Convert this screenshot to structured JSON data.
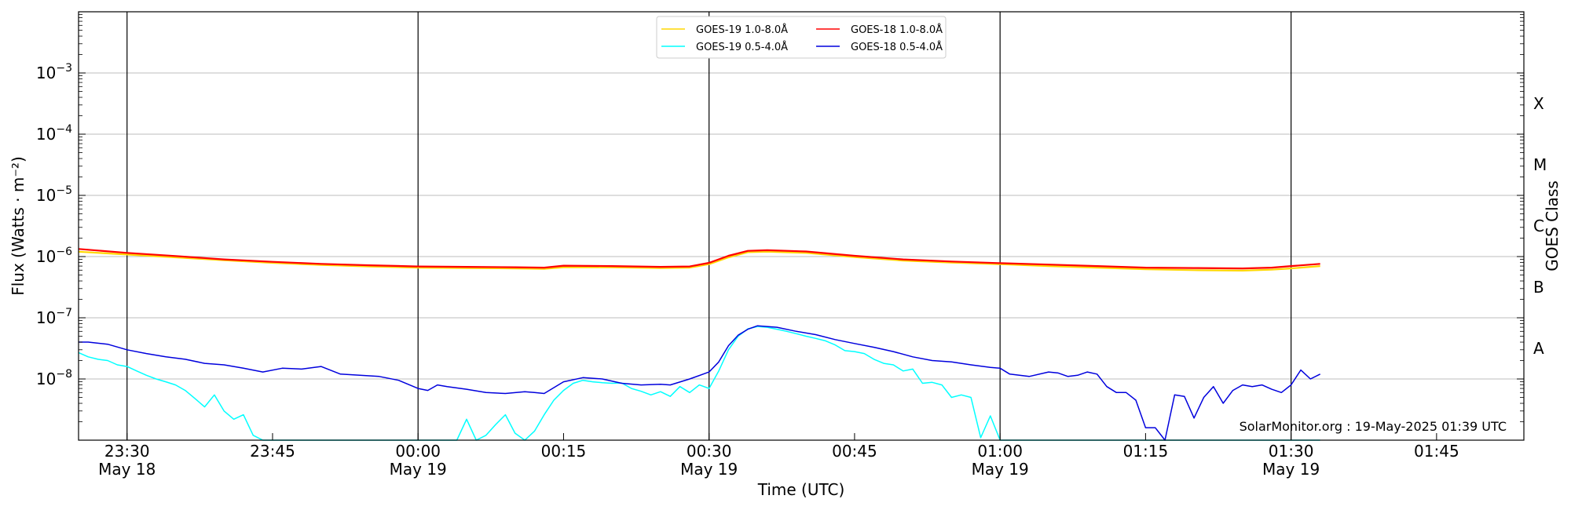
{
  "chart_data": {
    "type": "line",
    "xlabel": "Time (UTC)",
    "ylabel": "Flux (Watts · m⁻²)",
    "ylabel_right": "GOES Class",
    "y_scale": "log",
    "y_range": [
      1e-09,
      0.01
    ],
    "x_range": [
      "2025-05-18 23:25",
      "2025-05-19 01:54"
    ],
    "grid_y": true,
    "legend_position": "top-center",
    "credit": "SolarMonitor.org : 19-May-2025 01:39 UTC",
    "x_ticks": [
      {
        "time": "2025-05-18 23:30",
        "label1": "23:30",
        "label2": "May 18"
      },
      {
        "time": "2025-05-18 23:45",
        "label1": "23:45",
        "label2": ""
      },
      {
        "time": "2025-05-19 00:00",
        "label1": "00:00",
        "label2": "May 19"
      },
      {
        "time": "2025-05-19 00:15",
        "label1": "00:15",
        "label2": ""
      },
      {
        "time": "2025-05-19 00:30",
        "label1": "00:30",
        "label2": "May 19"
      },
      {
        "time": "2025-05-19 00:45",
        "label1": "00:45",
        "label2": ""
      },
      {
        "time": "2025-05-19 01:00",
        "label1": "01:00",
        "label2": "May 19"
      },
      {
        "time": "2025-05-19 01:15",
        "label1": "01:15",
        "label2": ""
      },
      {
        "time": "2025-05-19 01:30",
        "label1": "01:30",
        "label2": "May 19"
      },
      {
        "time": "2025-05-19 01:45",
        "label1": "01:45",
        "label2": ""
      }
    ],
    "vertical_lines": [
      "2025-05-18 23:30",
      "2025-05-19 00:00",
      "2025-05-19 00:30",
      "2025-05-19 01:00",
      "2025-05-19 01:30"
    ],
    "y_ticks": [
      {
        "exp": -8,
        "label": "10",
        "sup": "−8"
      },
      {
        "exp": -7,
        "label": "10",
        "sup": "−7"
      },
      {
        "exp": -6,
        "label": "10",
        "sup": "−6"
      },
      {
        "exp": -5,
        "label": "10",
        "sup": "−5"
      },
      {
        "exp": -4,
        "label": "10",
        "sup": "−4"
      },
      {
        "exp": -3,
        "label": "10",
        "sup": "−3"
      }
    ],
    "goes_classes": [
      {
        "label": "A",
        "exp": -7.5
      },
      {
        "label": "B",
        "exp": -6.5
      },
      {
        "label": "C",
        "exp": -5.5
      },
      {
        "label": "M",
        "exp": -4.5
      },
      {
        "label": "X",
        "exp": -3.5
      }
    ],
    "series": [
      {
        "name": "GOES-19 1.0-8.0Å",
        "color": "#ffd700",
        "x": [
          "2025-05-18 23:25",
          "2025-05-18 23:30",
          "2025-05-18 23:35",
          "2025-05-18 23:40",
          "2025-05-18 23:45",
          "2025-05-18 23:50",
          "2025-05-18 23:55",
          "2025-05-19 00:00",
          "2025-05-19 00:05",
          "2025-05-19 00:10",
          "2025-05-19 00:13",
          "2025-05-19 00:15",
          "2025-05-19 00:20",
          "2025-05-19 00:25",
          "2025-05-19 00:28",
          "2025-05-19 00:30",
          "2025-05-19 00:32",
          "2025-05-19 00:34",
          "2025-05-19 00:36",
          "2025-05-19 00:40",
          "2025-05-19 00:45",
          "2025-05-19 00:50",
          "2025-05-19 00:55",
          "2025-05-19 01:00",
          "2025-05-19 01:05",
          "2025-05-19 01:10",
          "2025-05-19 01:15",
          "2025-05-19 01:20",
          "2025-05-19 01:25",
          "2025-05-19 01:28",
          "2025-05-19 01:30",
          "2025-05-19 01:33"
        ],
        "y": [
          1.2e-06,
          1.08e-06,
          9.7e-07,
          8.7e-07,
          7.9e-07,
          7.3e-07,
          6.9e-07,
          6.6e-07,
          6.5e-07,
          6.4e-07,
          6.3e-07,
          6.7e-07,
          6.7e-07,
          6.5e-07,
          6.6e-07,
          7.5e-07,
          9.7e-07,
          1.18e-06,
          1.2e-06,
          1.15e-06,
          9.8e-07,
          8.6e-07,
          8e-07,
          7.5e-07,
          7e-07,
          6.6e-07,
          6.2e-07,
          6e-07,
          5.9e-07,
          6.1e-07,
          6.4e-07,
          7e-07
        ]
      },
      {
        "name": "GOES-18 1.0-8.0Å",
        "color": "#ff0000",
        "x": [
          "2025-05-18 23:25",
          "2025-05-18 23:30",
          "2025-05-18 23:35",
          "2025-05-18 23:40",
          "2025-05-18 23:45",
          "2025-05-18 23:50",
          "2025-05-18 23:55",
          "2025-05-19 00:00",
          "2025-05-19 00:05",
          "2025-05-19 00:10",
          "2025-05-19 00:13",
          "2025-05-19 00:15",
          "2025-05-19 00:20",
          "2025-05-19 00:25",
          "2025-05-19 00:28",
          "2025-05-19 00:30",
          "2025-05-19 00:32",
          "2025-05-19 00:34",
          "2025-05-19 00:36",
          "2025-05-19 00:40",
          "2025-05-19 00:45",
          "2025-05-19 00:50",
          "2025-05-19 00:55",
          "2025-05-19 01:00",
          "2025-05-19 01:05",
          "2025-05-19 01:10",
          "2025-05-19 01:15",
          "2025-05-19 01:20",
          "2025-05-19 01:25",
          "2025-05-19 01:28",
          "2025-05-19 01:30",
          "2025-05-19 01:33"
        ],
        "y": [
          1.33e-06,
          1.15e-06,
          1.02e-06,
          9e-07,
          8.2e-07,
          7.6e-07,
          7.2e-07,
          6.9e-07,
          6.8e-07,
          6.7e-07,
          6.6e-07,
          7.1e-07,
          7e-07,
          6.8e-07,
          6.9e-07,
          7.9e-07,
          1.03e-06,
          1.24e-06,
          1.27e-06,
          1.21e-06,
          1.03e-06,
          9e-07,
          8.3e-07,
          7.8e-07,
          7.4e-07,
          7e-07,
          6.6e-07,
          6.5e-07,
          6.4e-07,
          6.6e-07,
          7e-07,
          7.6e-07
        ]
      },
      {
        "name": "GOES-19 0.5-4.0Å",
        "color": "#00ffff",
        "x": [
          "2025-05-18 23:25",
          "2025-05-18 23:26",
          "2025-05-18 23:27",
          "2025-05-18 23:28",
          "2025-05-18 23:29",
          "2025-05-18 23:30",
          "2025-05-18 23:31",
          "2025-05-18 23:32",
          "2025-05-18 23:33",
          "2025-05-18 23:34",
          "2025-05-18 23:35",
          "2025-05-18 23:36",
          "2025-05-18 23:37",
          "2025-05-18 23:38",
          "2025-05-18 23:39",
          "2025-05-18 23:40",
          "2025-05-18 23:41",
          "2025-05-18 23:42",
          "2025-05-18 23:43",
          "2025-05-18 23:44",
          "2025-05-18 23:45",
          "2025-05-18 23:50",
          "2025-05-18 23:55",
          "2025-05-19 00:00",
          "2025-05-19 00:02",
          "2025-05-19 00:03",
          "2025-05-19 00:04",
          "2025-05-19 00:05",
          "2025-05-19 00:06",
          "2025-05-19 00:07",
          "2025-05-19 00:08",
          "2025-05-19 00:09",
          "2025-05-19 00:10",
          "2025-05-19 00:11",
          "2025-05-19 00:12",
          "2025-05-19 00:13",
          "2025-05-19 00:14",
          "2025-05-19 00:15",
          "2025-05-19 00:16",
          "2025-05-19 00:17",
          "2025-05-19 00:18",
          "2025-05-19 00:19",
          "2025-05-19 00:20",
          "2025-05-19 00:21",
          "2025-05-19 00:22",
          "2025-05-19 00:23",
          "2025-05-19 00:24",
          "2025-05-19 00:25",
          "2025-05-19 00:26",
          "2025-05-19 00:27",
          "2025-05-19 00:28",
          "2025-05-19 00:29",
          "2025-05-19 00:30",
          "2025-05-19 00:31",
          "2025-05-19 00:32",
          "2025-05-19 00:33",
          "2025-05-19 00:34",
          "2025-05-19 00:35",
          "2025-05-19 00:36",
          "2025-05-19 00:37",
          "2025-05-19 00:38",
          "2025-05-19 00:39",
          "2025-05-19 00:40",
          "2025-05-19 00:41",
          "2025-05-19 00:42",
          "2025-05-19 00:43",
          "2025-05-19 00:44",
          "2025-05-19 00:45",
          "2025-05-19 00:46",
          "2025-05-19 00:47",
          "2025-05-19 00:48",
          "2025-05-19 00:49",
          "2025-05-19 00:50",
          "2025-05-19 00:51",
          "2025-05-19 00:52",
          "2025-05-19 00:53",
          "2025-05-19 00:54",
          "2025-05-19 00:55",
          "2025-05-19 00:56",
          "2025-05-19 00:57",
          "2025-05-19 00:58",
          "2025-05-19 00:59",
          "2025-05-19 01:00",
          "2025-05-19 01:05",
          "2025-05-19 01:10",
          "2025-05-19 01:15",
          "2025-05-19 01:20",
          "2025-05-19 01:25",
          "2025-05-19 01:30",
          "2025-05-19 01:33"
        ],
        "y": [
          2.7e-08,
          2.3e-08,
          2.1e-08,
          2e-08,
          1.7e-08,
          1.6e-08,
          1.35e-08,
          1.15e-08,
          1e-08,
          9e-09,
          8e-09,
          6.5e-09,
          4.8e-09,
          3.5e-09,
          5.5e-09,
          3e-09,
          2.2e-09,
          2.6e-09,
          1.2e-09,
          1e-09,
          1e-09,
          1e-09,
          1e-09,
          1e-09,
          1e-09,
          1e-09,
          1e-09,
          2.2e-09,
          1e-09,
          1.2e-09,
          1.8e-09,
          2.6e-09,
          1.3e-09,
          1e-09,
          1.4e-09,
          2.6e-09,
          4.5e-09,
          6.5e-09,
          8.5e-09,
          9.5e-09,
          9e-09,
          8.7e-09,
          8.5e-09,
          8.6e-09,
          7e-09,
          6.3e-09,
          5.5e-09,
          6.2e-09,
          5.2e-09,
          7.5e-09,
          6e-09,
          8e-09,
          7e-09,
          1.35e-08,
          3e-08,
          5e-08,
          6.6e-08,
          7.2e-08,
          7e-08,
          6.5e-08,
          6e-08,
          5.5e-08,
          5e-08,
          4.6e-08,
          4.2e-08,
          3.6e-08,
          2.9e-08,
          2.8e-08,
          2.6e-08,
          2.1e-08,
          1.8e-08,
          1.7e-08,
          1.35e-08,
          1.45e-08,
          8.5e-09,
          8.8e-09,
          8e-09,
          5e-09,
          5.5e-09,
          5e-09,
          1.1e-09,
          2.5e-09,
          1e-09,
          1e-09,
          1e-09,
          1e-09,
          1e-09,
          1e-09,
          1e-09,
          1e-09
        ]
      },
      {
        "name": "GOES-18 0.5-4.0Å",
        "color": "#0000dd",
        "x": [
          "2025-05-18 23:25",
          "2025-05-18 23:26",
          "2025-05-18 23:28",
          "2025-05-18 23:30",
          "2025-05-18 23:32",
          "2025-05-18 23:34",
          "2025-05-18 23:36",
          "2025-05-18 23:38",
          "2025-05-18 23:40",
          "2025-05-18 23:42",
          "2025-05-18 23:44",
          "2025-05-18 23:46",
          "2025-05-18 23:48",
          "2025-05-18 23:50",
          "2025-05-18 23:52",
          "2025-05-18 23:54",
          "2025-05-18 23:56",
          "2025-05-18 23:58",
          "2025-05-19 00:00",
          "2025-05-19 00:01",
          "2025-05-19 00:02",
          "2025-05-19 00:03",
          "2025-05-19 00:05",
          "2025-05-19 00:07",
          "2025-05-19 00:09",
          "2025-05-19 00:11",
          "2025-05-19 00:12",
          "2025-05-19 00:13",
          "2025-05-19 00:15",
          "2025-05-19 00:17",
          "2025-05-19 00:19",
          "2025-05-19 00:21",
          "2025-05-19 00:23",
          "2025-05-19 00:25",
          "2025-05-19 00:26",
          "2025-05-19 00:28",
          "2025-05-19 00:30",
          "2025-05-19 00:31",
          "2025-05-19 00:32",
          "2025-05-19 00:33",
          "2025-05-19 00:34",
          "2025-05-19 00:35",
          "2025-05-19 00:37",
          "2025-05-19 00:39",
          "2025-05-19 00:41",
          "2025-05-19 00:43",
          "2025-05-19 00:45",
          "2025-05-19 00:47",
          "2025-05-19 00:49",
          "2025-05-19 00:51",
          "2025-05-19 00:53",
          "2025-05-19 00:55",
          "2025-05-19 00:57",
          "2025-05-19 00:59",
          "2025-05-19 01:00",
          "2025-05-19 01:01",
          "2025-05-19 01:03",
          "2025-05-19 01:05",
          "2025-05-19 01:06",
          "2025-05-19 01:07",
          "2025-05-19 01:08",
          "2025-05-19 01:09",
          "2025-05-19 01:10",
          "2025-05-19 01:11",
          "2025-05-19 01:12",
          "2025-05-19 01:13",
          "2025-05-19 01:14",
          "2025-05-19 01:15",
          "2025-05-19 01:16",
          "2025-05-19 01:17",
          "2025-05-19 01:18",
          "2025-05-19 01:19",
          "2025-05-19 01:20",
          "2025-05-19 01:21",
          "2025-05-19 01:22",
          "2025-05-19 01:23",
          "2025-05-19 01:24",
          "2025-05-19 01:25",
          "2025-05-19 01:26",
          "2025-05-19 01:27",
          "2025-05-19 01:28",
          "2025-05-19 01:29",
          "2025-05-19 01:30",
          "2025-05-19 01:31",
          "2025-05-19 01:32",
          "2025-05-19 01:33"
        ],
        "y": [
          4e-08,
          4e-08,
          3.7e-08,
          3e-08,
          2.6e-08,
          2.3e-08,
          2.1e-08,
          1.8e-08,
          1.7e-08,
          1.5e-08,
          1.3e-08,
          1.5e-08,
          1.45e-08,
          1.6e-08,
          1.2e-08,
          1.15e-08,
          1.1e-08,
          9.5e-09,
          7e-09,
          6.5e-09,
          8e-09,
          7.5e-09,
          6.8e-09,
          6e-09,
          5.8e-09,
          6.2e-09,
          6e-09,
          5.8e-09,
          9e-09,
          1.05e-08,
          1e-08,
          8.5e-09,
          8e-09,
          8.2e-09,
          8e-09,
          1e-08,
          1.3e-08,
          1.9e-08,
          3.5e-08,
          5.2e-08,
          6.5e-08,
          7.4e-08,
          7e-08,
          6e-08,
          5.3e-08,
          4.4e-08,
          3.8e-08,
          3.3e-08,
          2.8e-08,
          2.3e-08,
          2e-08,
          1.9e-08,
          1.7e-08,
          1.55e-08,
          1.5e-08,
          1.2e-08,
          1.1e-08,
          1.3e-08,
          1.25e-08,
          1.1e-08,
          1.15e-08,
          1.3e-08,
          1.2e-08,
          7.5e-09,
          6e-09,
          6e-09,
          4.5e-09,
          1.6e-09,
          1.6e-09,
          1e-09,
          5.5e-09,
          5.2e-09,
          2.3e-09,
          5e-09,
          7.5e-09,
          4e-09,
          6.5e-09,
          8e-09,
          7.5e-09,
          8e-09,
          6.8e-09,
          6e-09,
          8e-09,
          1.4e-08,
          1e-08,
          1.2e-08
        ]
      }
    ]
  }
}
